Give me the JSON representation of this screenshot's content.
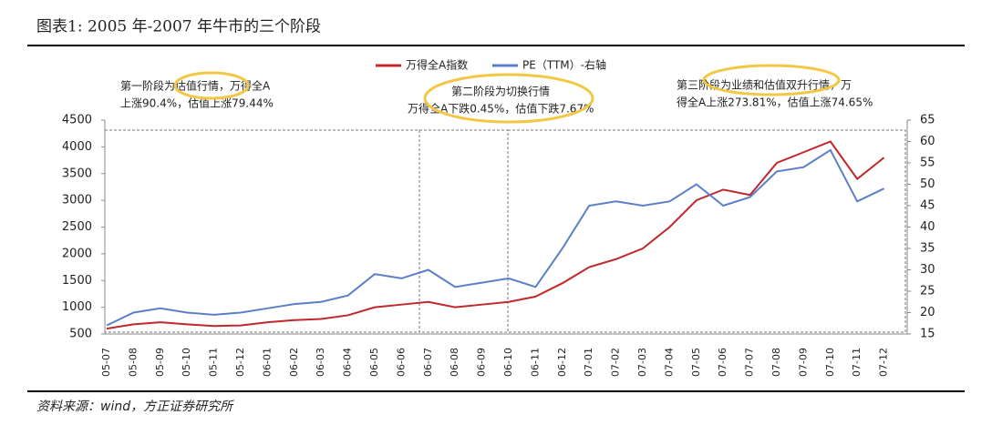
{
  "chart_data": {
    "type": "line",
    "title": "图表1:   2005 年-2007 年牛市的三个阶段",
    "source": "资料来源：wind，方正证券研究所",
    "annotations": [
      "第一阶段为估值行情，万得全A",
      "上涨90.4%，估值上涨79.44%",
      "第二阶段为切换行情",
      "万得全A下跌0.45%，估值下跌7.67%",
      "第三阶段为业绩和估值双升行情，万",
      "得全A上涨273.81%，估值上涨74.65%"
    ],
    "categories": [
      "05-07",
      "05-08",
      "05-09",
      "05-10",
      "05-11",
      "05-12",
      "06-01",
      "06-02",
      "06-03",
      "06-04",
      "06-05",
      "06-06",
      "06-07",
      "06-08",
      "06-09",
      "06-10",
      "06-11",
      "06-12",
      "07-01",
      "07-02",
      "07-03",
      "07-04",
      "07-05",
      "07-06",
      "07-07",
      "07-08",
      "07-09",
      "07-10",
      "07-11",
      "07-12"
    ],
    "series": [
      {
        "name": "万得全A指数",
        "color": "#c0282a",
        "values": [
          600,
          680,
          720,
          680,
          650,
          660,
          720,
          760,
          780,
          850,
          1000,
          1050,
          1100,
          1000,
          1050,
          1100,
          1200,
          1450,
          1750,
          1900,
          2100,
          2500,
          3000,
          3200,
          3100,
          3700,
          3900,
          4100,
          3400,
          3800
        ]
      },
      {
        "name": "PE（TTM）-右轴",
        "color": "#5b7fc7",
        "axis": "y2",
        "values": [
          17,
          20,
          21,
          20,
          19.5,
          20,
          21,
          22,
          22.5,
          24,
          29,
          28,
          30,
          26,
          27,
          28,
          26,
          35,
          45,
          46,
          45,
          46,
          50,
          45,
          47,
          53,
          54,
          58,
          46,
          49
        ]
      }
    ],
    "ylim": [
      500,
      4500
    ],
    "yticks": [
      500,
      1000,
      1500,
      2000,
      2500,
      3000,
      3500,
      4000,
      4500
    ],
    "y2lim": [
      15,
      65
    ],
    "y2ticks": [
      15,
      20,
      25,
      30,
      35,
      40,
      45,
      50,
      55,
      60,
      65
    ]
  }
}
